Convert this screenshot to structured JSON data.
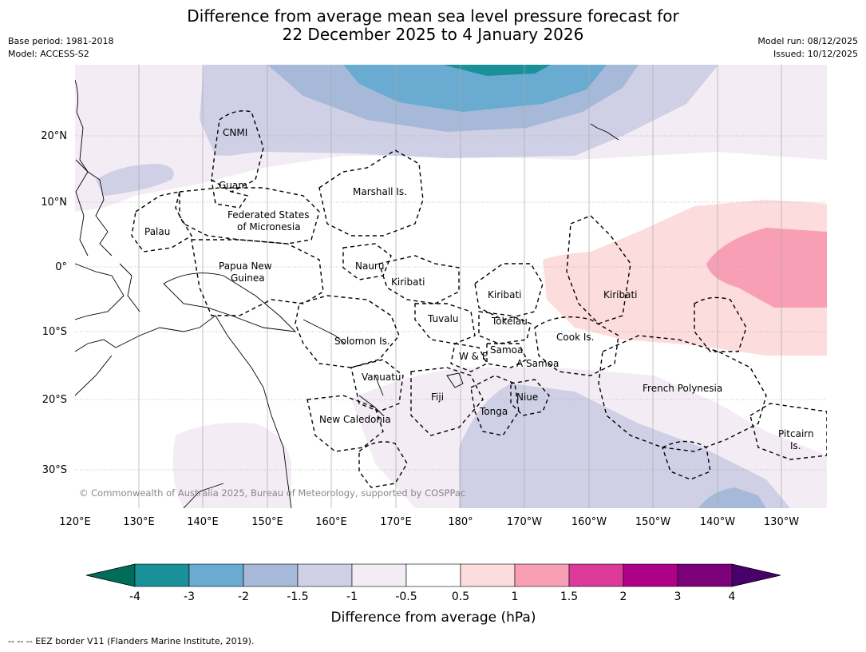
{
  "header": {
    "title_line1": "Difference from average mean sea level pressure forecast for",
    "title_line2": "22 December 2025 to 4 January 2026",
    "base_period": "Base period: 1981-2018",
    "model": "Model: ACCESS-S2",
    "model_run": "Model run: 08/12/2025",
    "issued": "Issued: 10/12/2025"
  },
  "map": {
    "lat_labels": [
      "20°N",
      "10°N",
      "0°",
      "10°S",
      "20°S",
      "30°S"
    ],
    "lon_labels": [
      "120°E",
      "130°E",
      "140°E",
      "150°E",
      "160°E",
      "170°E",
      "180°",
      "170°W",
      "160°W",
      "150°W",
      "140°W",
      "130°W"
    ],
    "regions": {
      "cnmi": "CNMI",
      "guam": "Guam",
      "marshall": "Marshall Is.",
      "fsm1": "Federated States",
      "fsm2": "of Micronesia",
      "palau": "Palau",
      "png1": "Papua New",
      "png2": "Guinea",
      "nauru": "Nauru",
      "kiribati_w": "Kiribati",
      "kiribati_c": "Kiribati",
      "kiribati_e": "Kiribati",
      "tuvalu": "Tuvalu",
      "tokelau": "Tokelau",
      "cook": "Cook Is.",
      "solomon": "Solomon Is.",
      "samoa": "Samoa",
      "wf": "W & F",
      "asamoa": "A Samoa",
      "vanuatu": "Vanuatu",
      "fiji": "Fiji",
      "niue": "Niue",
      "tonga": "Tonga",
      "frenchpoly": "French Polynesia",
      "newcal": "New Caledonia",
      "pitcairn1": "Pitcairn",
      "pitcairn2": "Is."
    },
    "copyright": "© Commonwealth of Australia 2025, Bureau of Meteorology, supported by COSPPac"
  },
  "colorbar": {
    "ticks": [
      "-4",
      "-3",
      "-2",
      "-1.5",
      "-1",
      "-0.5",
      "0.5",
      "1",
      "1.5",
      "2",
      "3",
      "4"
    ],
    "colors": [
      "#1a9098",
      "#6aabd2",
      "#a6b9d8",
      "#cfd0e6",
      "#f3ecf5",
      "#ffffff",
      "#fcdcdc",
      "#f89fb6",
      "#db3a9b",
      "#ad0285",
      "#7a0177"
    ],
    "under_color": "#016c59",
    "over_color": "#49006a",
    "label": "Difference from average (hPa)"
  },
  "footnote": "-- -- -- EEZ border V11 (Flanders Marine Institute, 2019)."
}
